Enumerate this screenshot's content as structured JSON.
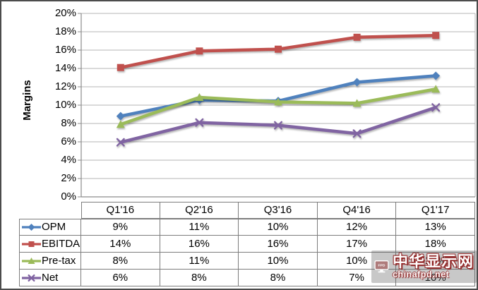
{
  "chart_data": {
    "type": "line",
    "title": "",
    "xlabel": "",
    "ylabel": "Margins",
    "ylim": [
      0,
      20
    ],
    "ytick_step": 2,
    "ytick_labels": [
      "0%",
      "2%",
      "4%",
      "6%",
      "8%",
      "10%",
      "12%",
      "14%",
      "16%",
      "18%",
      "20%"
    ],
    "grid": true,
    "legend_position": "data-table-left",
    "categories": [
      "Q1'16",
      "Q2'16",
      "Q3'16",
      "Q4'16",
      "Q1'17"
    ],
    "series": [
      {
        "name": "OPM",
        "marker": "diamond",
        "color": "#4F81BD",
        "values": [
          8.8,
          10.55,
          10.45,
          12.5,
          13.2
        ],
        "table_values": [
          "9%",
          "11%",
          "10%",
          "12%",
          "13%"
        ]
      },
      {
        "name": "EBITDA",
        "marker": "square",
        "color": "#C0504D",
        "values": [
          14.1,
          15.9,
          16.1,
          17.4,
          17.6
        ],
        "table_values": [
          "14%",
          "16%",
          "16%",
          "17%",
          "18%"
        ]
      },
      {
        "name": "Pre-tax",
        "marker": "triangle",
        "color": "#9BBB59",
        "values": [
          7.9,
          10.85,
          10.35,
          10.2,
          11.75
        ],
        "table_values": [
          "8%",
          "11%",
          "10%",
          "10%",
          "12%"
        ]
      },
      {
        "name": "Net",
        "marker": "x",
        "color": "#8064A2",
        "values": [
          5.95,
          8.1,
          7.8,
          6.9,
          9.75
        ],
        "table_values": [
          "6%",
          "8%",
          "8%",
          "7%",
          "10%"
        ]
      }
    ]
  },
  "watermark": {
    "icon_label": "FPD",
    "title": "中华显示网",
    "domain": "chinafpd.net",
    "accent_color": "#8D1C1C"
  },
  "colors": {
    "gridline": "#b5b5b5",
    "axis": "#8c8c8c",
    "table_border": "#7d7d7d",
    "outer_border": "#4c4c4c"
  }
}
